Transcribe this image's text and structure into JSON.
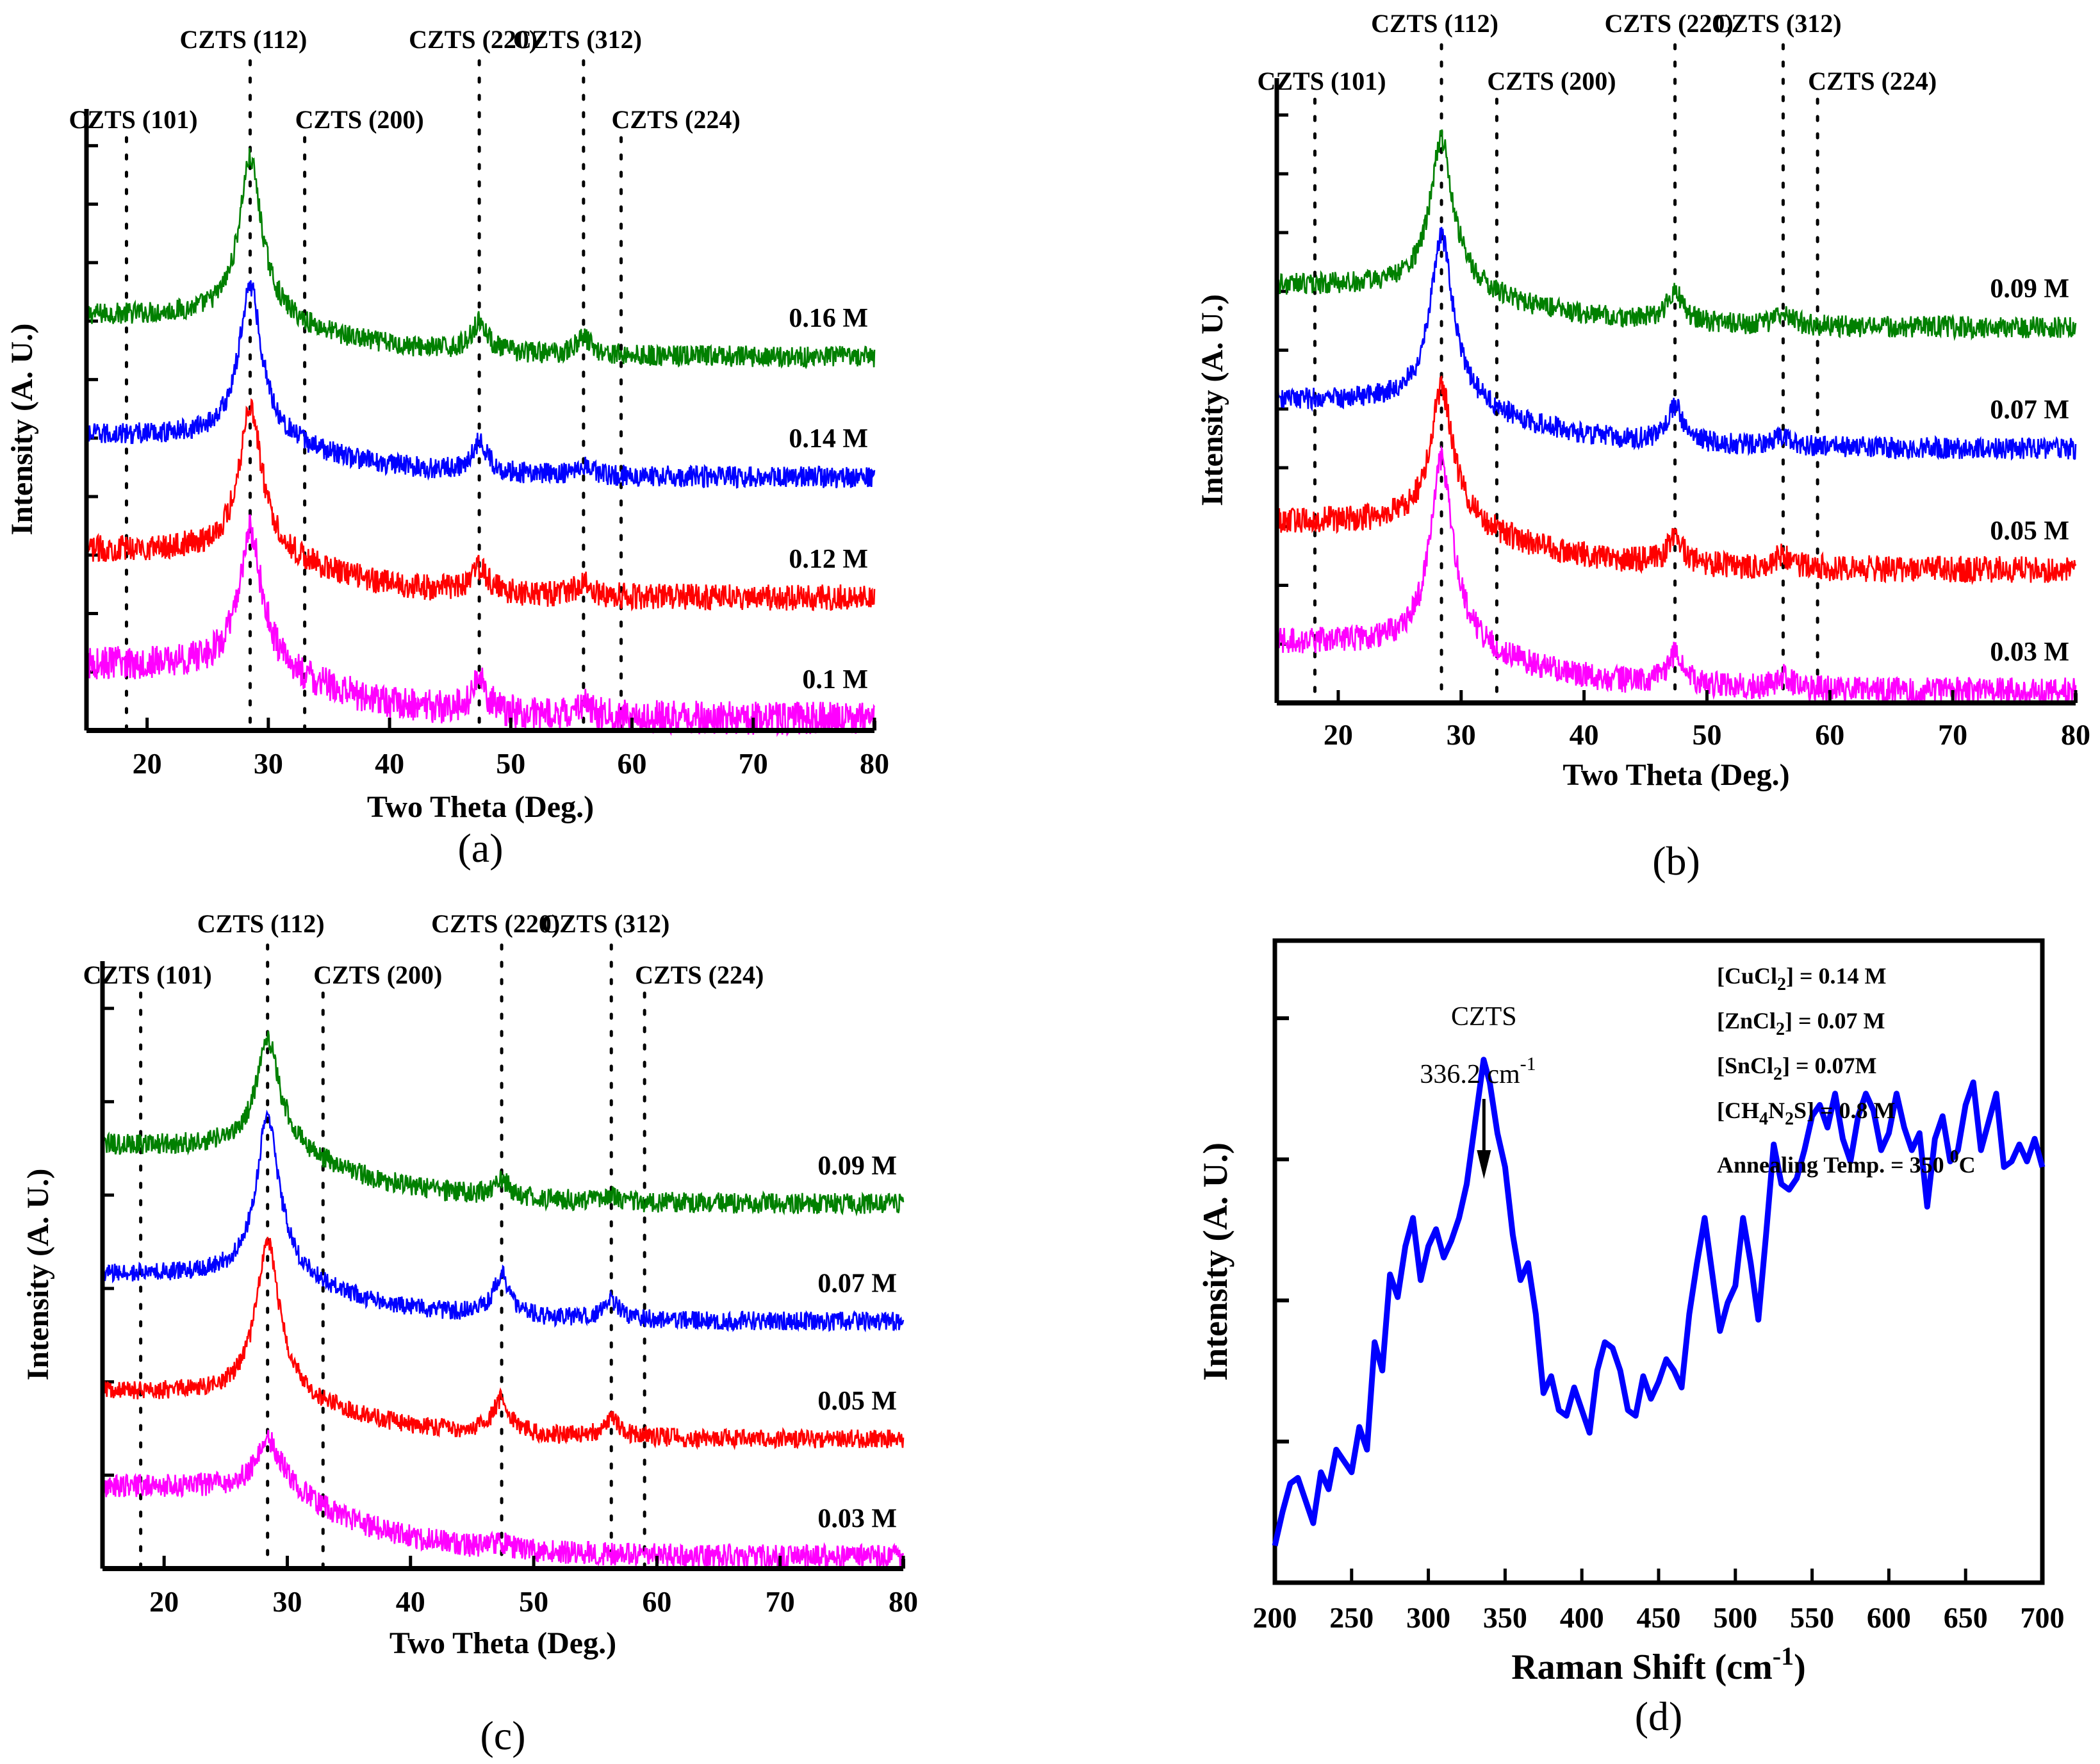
{
  "figure": {
    "description": "Four-panel figure: XRD patterns (a)-(c) and Raman spectrum (d) of CZTS thin films"
  },
  "chart_data": [
    {
      "id": "a",
      "type": "line",
      "panel_label": "(a)",
      "title": "",
      "xlabel": "Two Theta (Deg.)",
      "ylabel": "Intensity (A. U.)",
      "xlim": [
        15,
        80
      ],
      "x_ticks": [
        20,
        30,
        40,
        50,
        60,
        70,
        80
      ],
      "y_ticks_count": 10,
      "y_ticks_labeled": false,
      "grid": false,
      "reference_lines": [
        {
          "label": "CZTS (101)",
          "x": 18.3
        },
        {
          "label": "CZTS (112)",
          "x": 28.5
        },
        {
          "label": "CZTS (200)",
          "x": 33.0
        },
        {
          "label": "CZTS (220)",
          "x": 47.4
        },
        {
          "label": "CZTS (312)",
          "x": 56.0
        },
        {
          "label": "CZTS (224)",
          "x": 59.1
        }
      ],
      "series": [
        {
          "name": "0.16 M",
          "color": "#008000",
          "offset": 0.62,
          "baseline_start": 0.07,
          "baseline_end": 0.0,
          "peaks": [
            {
              "x": 28.5,
              "h": 0.26
            },
            {
              "x": 47.4,
              "h": 0.05
            },
            {
              "x": 56.0,
              "h": 0.03
            }
          ],
          "noise": 0.009
        },
        {
          "name": "0.14 M",
          "color": "#0000ff",
          "offset": 0.42,
          "baseline_start": 0.07,
          "baseline_end": 0.0,
          "peaks": [
            {
              "x": 28.5,
              "h": 0.25
            },
            {
              "x": 47.4,
              "h": 0.05
            },
            {
              "x": 56.0,
              "h": 0.02
            }
          ],
          "noise": 0.009
        },
        {
          "name": "0.12 M",
          "color": "#ff0000",
          "offset": 0.22,
          "baseline_start": 0.08,
          "baseline_end": 0.0,
          "peaks": [
            {
              "x": 28.5,
              "h": 0.24
            },
            {
              "x": 47.4,
              "h": 0.04
            },
            {
              "x": 56.0,
              "h": 0.02
            }
          ],
          "noise": 0.011
        },
        {
          "name": "0.1 M",
          "color": "#ff00ff",
          "offset": 0.02,
          "baseline_start": 0.09,
          "baseline_end": 0.0,
          "peaks": [
            {
              "x": 28.5,
              "h": 0.22
            },
            {
              "x": 47.4,
              "h": 0.05
            },
            {
              "x": 56.0,
              "h": 0.02
            }
          ],
          "noise": 0.014
        }
      ]
    },
    {
      "id": "b",
      "type": "line",
      "panel_label": "(b)",
      "title": "",
      "xlabel": "Two Theta (Deg.)",
      "ylabel": "Intensity (A. U.)",
      "xlim": [
        15,
        80
      ],
      "x_ticks": [
        20,
        30,
        40,
        50,
        60,
        70,
        80
      ],
      "y_ticks_count": 10,
      "y_ticks_labeled": false,
      "grid": false,
      "reference_lines": [
        {
          "label": "CZTS (101)",
          "x": 18.1
        },
        {
          "label": "CZTS (112)",
          "x": 28.4
        },
        {
          "label": "CZTS (200)",
          "x": 32.9
        },
        {
          "label": "CZTS (220)",
          "x": 47.4
        },
        {
          "label": "CZTS (312)",
          "x": 56.2
        },
        {
          "label": "CZTS (224)",
          "x": 59.0
        }
      ],
      "series": [
        {
          "name": "0.09 M",
          "color": "#008000",
          "offset": 0.62,
          "baseline_start": 0.07,
          "baseline_end": 0.0,
          "peaks": [
            {
              "x": 28.4,
              "h": 0.24
            },
            {
              "x": 47.4,
              "h": 0.05
            },
            {
              "x": 56.2,
              "h": 0.02
            }
          ],
          "noise": 0.009
        },
        {
          "name": "0.07 M",
          "color": "#0000ff",
          "offset": 0.42,
          "baseline_start": 0.08,
          "baseline_end": 0.0,
          "peaks": [
            {
              "x": 28.4,
              "h": 0.27
            },
            {
              "x": 47.4,
              "h": 0.06
            },
            {
              "x": 56.2,
              "h": 0.02
            }
          ],
          "noise": 0.009
        },
        {
          "name": "0.05 M",
          "color": "#ff0000",
          "offset": 0.22,
          "baseline_start": 0.08,
          "baseline_end": 0.0,
          "peaks": [
            {
              "x": 28.4,
              "h": 0.22
            },
            {
              "x": 47.4,
              "h": 0.04
            },
            {
              "x": 56.2,
              "h": 0.02
            }
          ],
          "noise": 0.011
        },
        {
          "name": "0.03 M",
          "color": "#ff00ff",
          "offset": 0.02,
          "baseline_start": 0.08,
          "baseline_end": 0.0,
          "peaks": [
            {
              "x": 28.4,
              "h": 0.3
            },
            {
              "x": 47.4,
              "h": 0.05
            },
            {
              "x": 56.2,
              "h": 0.02
            }
          ],
          "noise": 0.011
        }
      ]
    },
    {
      "id": "c",
      "type": "line",
      "panel_label": "(c)",
      "title": "",
      "xlabel": "Two Theta (Deg.)",
      "ylabel": "Intensity (A. U.)",
      "xlim": [
        15,
        80
      ],
      "x_ticks": [
        20,
        30,
        40,
        50,
        60,
        70,
        80
      ],
      "y_ticks_count": 6,
      "y_ticks_labeled": false,
      "grid": false,
      "reference_lines": [
        {
          "label": "CZTS (101)",
          "x": 18.1
        },
        {
          "label": "CZTS (112)",
          "x": 28.4
        },
        {
          "label": "CZTS (200)",
          "x": 32.9
        },
        {
          "label": "CZTS (220)",
          "x": 47.4
        },
        {
          "label": "CZTS (312)",
          "x": 56.3
        },
        {
          "label": "CZTS (224)",
          "x": 59.0
        }
      ],
      "series": [
        {
          "name": "0.09 M",
          "color": "#008000",
          "offset": 0.62,
          "baseline_start": 0.1,
          "baseline_end": 0.0,
          "peaks": [
            {
              "x": 28.4,
              "h": 0.18
            },
            {
              "x": 47.4,
              "h": 0.03
            },
            {
              "x": 56.3,
              "h": 0.01
            }
          ],
          "noise": 0.009
        },
        {
          "name": "0.07 M",
          "color": "#0000ff",
          "offset": 0.42,
          "baseline_start": 0.08,
          "baseline_end": 0.0,
          "peaks": [
            {
              "x": 28.4,
              "h": 0.27
            },
            {
              "x": 47.4,
              "h": 0.07
            },
            {
              "x": 56.3,
              "h": 0.03
            }
          ],
          "noise": 0.008
        },
        {
          "name": "0.05 M",
          "color": "#ff0000",
          "offset": 0.22,
          "baseline_start": 0.08,
          "baseline_end": 0.0,
          "peaks": [
            {
              "x": 28.4,
              "h": 0.26
            },
            {
              "x": 47.4,
              "h": 0.06
            },
            {
              "x": 56.3,
              "h": 0.03
            }
          ],
          "noise": 0.008
        },
        {
          "name": "0.03 M",
          "color": "#ff00ff",
          "offset": 0.02,
          "baseline_start": 0.12,
          "baseline_end": 0.0,
          "peaks": [
            {
              "x": 28.4,
              "h": 0.08
            },
            {
              "x": 47.4,
              "h": 0.01
            }
          ],
          "noise": 0.01
        }
      ]
    },
    {
      "id": "d",
      "type": "line",
      "panel_label": "(d)",
      "title": "",
      "xlabel": "Raman Shift (cm",
      "xlabel_superscript": "-1",
      "xlabel_suffix": ")",
      "ylabel": "Intensity (A. U.)",
      "xlim": [
        200,
        700
      ],
      "ylim": [
        0,
        1
      ],
      "x_ticks": [
        200,
        250,
        300,
        350,
        400,
        450,
        500,
        550,
        600,
        650,
        700
      ],
      "y_ticks_count": 4,
      "y_ticks_labeled": false,
      "grid": false,
      "annotation": {
        "label": "CZTS",
        "value": "336.2 cm",
        "superscript": "-1",
        "x": 336.2
      },
      "conditions": [
        {
          "name": "[CuCl",
          "sub": "2",
          "rest": "] = 0.14 M"
        },
        {
          "name": "[ZnCl",
          "sub": "2",
          "rest": "] = 0.07 M"
        },
        {
          "name": "[SnCl",
          "sub": "2",
          "rest": "] = 0.07M"
        },
        {
          "name": "[CH",
          "sub": "4",
          "mid": "N",
          "sub2": "2",
          "rest": "S] = 0.8 M"
        },
        {
          "name": "Annealing Temp. = 350 ",
          "sup": "0",
          "rest": "C"
        }
      ],
      "series": [
        {
          "name": "Raman",
          "color": "#0000ff",
          "x": [
            200,
            205,
            210,
            215,
            220,
            225,
            230,
            235,
            240,
            245,
            250,
            255,
            260,
            265,
            270,
            275,
            280,
            285,
            290,
            295,
            300,
            305,
            310,
            315,
            320,
            325,
            330,
            336,
            340,
            345,
            350,
            355,
            360,
            365,
            370,
            375,
            380,
            385,
            390,
            395,
            400,
            405,
            410,
            415,
            420,
            425,
            430,
            435,
            440,
            445,
            450,
            455,
            460,
            465,
            470,
            475,
            480,
            485,
            490,
            495,
            500,
            505,
            510,
            515,
            520,
            525,
            530,
            535,
            540,
            545,
            550,
            555,
            560,
            565,
            570,
            575,
            580,
            585,
            590,
            595,
            600,
            605,
            610,
            615,
            620,
            625,
            630,
            635,
            640,
            645,
            650,
            655,
            660,
            665,
            670,
            675,
            680,
            685,
            690,
            695,
            700
          ],
          "y": [
            0.02,
            0.08,
            0.13,
            0.14,
            0.1,
            0.06,
            0.15,
            0.12,
            0.19,
            0.17,
            0.15,
            0.23,
            0.19,
            0.38,
            0.33,
            0.5,
            0.46,
            0.55,
            0.6,
            0.49,
            0.55,
            0.58,
            0.53,
            0.56,
            0.6,
            0.66,
            0.76,
            0.88,
            0.84,
            0.75,
            0.69,
            0.57,
            0.49,
            0.52,
            0.43,
            0.29,
            0.32,
            0.26,
            0.25,
            0.3,
            0.26,
            0.22,
            0.33,
            0.38,
            0.37,
            0.33,
            0.26,
            0.25,
            0.32,
            0.28,
            0.31,
            0.35,
            0.33,
            0.3,
            0.43,
            0.52,
            0.6,
            0.5,
            0.4,
            0.45,
            0.48,
            0.6,
            0.52,
            0.42,
            0.57,
            0.73,
            0.66,
            0.65,
            0.67,
            0.72,
            0.78,
            0.8,
            0.76,
            0.82,
            0.74,
            0.7,
            0.78,
            0.82,
            0.79,
            0.72,
            0.75,
            0.82,
            0.76,
            0.72,
            0.75,
            0.62,
            0.74,
            0.78,
            0.7,
            0.72,
            0.8,
            0.84,
            0.72,
            0.77,
            0.82,
            0.69,
            0.7,
            0.73,
            0.7,
            0.74,
            0.69
          ]
        }
      ]
    }
  ]
}
